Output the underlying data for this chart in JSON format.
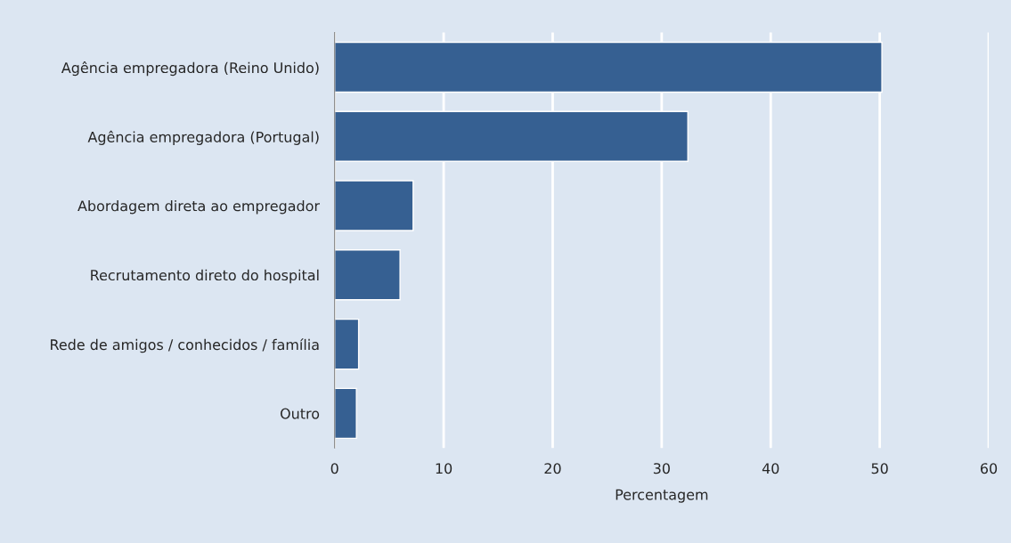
{
  "chart_data": {
    "type": "bar",
    "orientation": "horizontal",
    "xlabel": "Percentagem",
    "categories": [
      "Agência empregadora (Reino Unido)",
      "Agência empregadora (Portugal)",
      "Abordagem direta ao empregador",
      "Recrutamento direto do hospital",
      "Rede de amigos / conhecidos / família",
      "Outro"
    ],
    "values": [
      50.2,
      32.4,
      7.2,
      6.0,
      2.2,
      2.0
    ],
    "color": "#366092",
    "xlim": [
      0,
      60
    ],
    "xticks": [
      0,
      10,
      20,
      30,
      40,
      50,
      60
    ],
    "grid": "x",
    "legend": false
  }
}
